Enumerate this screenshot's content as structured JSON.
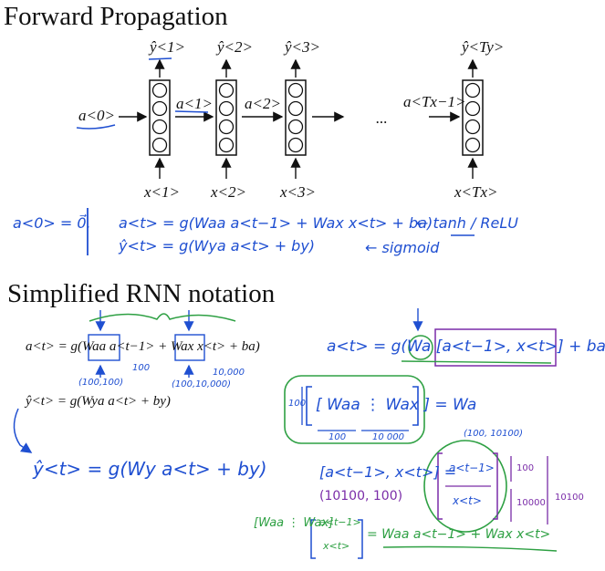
{
  "titles": {
    "forward": "Forward Propagation",
    "simplified": "Simplified RNN notation"
  },
  "forward_diagram": {
    "a0": "a<0>",
    "a1": "a<1>",
    "a2": "a<2>",
    "aTxm1": "a<Tx−1>",
    "dots": "...",
    "yhat": [
      "ŷ<1>",
      "ŷ<2>",
      "ŷ<3>",
      "ŷ<Ty>"
    ],
    "x": [
      "x<1>",
      "x<2>",
      "x<3>",
      "x<Tx>"
    ]
  },
  "forward_notes": {
    "a0_zero": "a<0> = 0⃗.",
    "eq_a": "a<t> = g(Waa a<t−1> + Wax x<t> + ba)",
    "act_a": "← tanh / ReLU",
    "eq_y": "ŷ<t> = g(Wya a<t> + by)",
    "act_y": "← sigmoid"
  },
  "simplified": {
    "eq_a_print": "a<t> = g(Waa a<t−1> + Wax x<t> + ba)",
    "eq_y_print": "ŷ<t> = g(Wya a<t> + by)",
    "dim_100_100": "(100,100)",
    "dim_100": "100",
    "dim_100_10000": "(100,10,000)",
    "dim_10000": "10,000",
    "eq_y_hand": "ŷ<t> = g(Wy a<t> + by)",
    "eq_a_hand": "a<t> = g(Wa [a<t−1>, x<t>] + ba)",
    "wa_def": "[ Waa ⋮ Wax ] = Wa",
    "wa_dim_100": "100",
    "wa_dim_100b": "100",
    "wa_dim_10000": "10 000",
    "wa_shape": "(100, 10100)",
    "stack_def": "[a<t−1>, x<t>] =",
    "stack_top": "a<t−1>",
    "stack_bottom": "x<t>",
    "stack_100": "100",
    "stack_10000": "10000",
    "stack_10100": "10100",
    "stack_shape": "(10100, 100)",
    "product_left": "[Waa ⋮ Wax]",
    "product_vec_top": "a<t−1>",
    "product_vec_bottom": "x<t>",
    "product_rhs": "= Waa a<t−1> + Wax x<t>"
  },
  "colors": {
    "ink": "#111111",
    "blue": "#1f4fd1",
    "green": "#2ea043",
    "purple": "#7a2ca8"
  }
}
